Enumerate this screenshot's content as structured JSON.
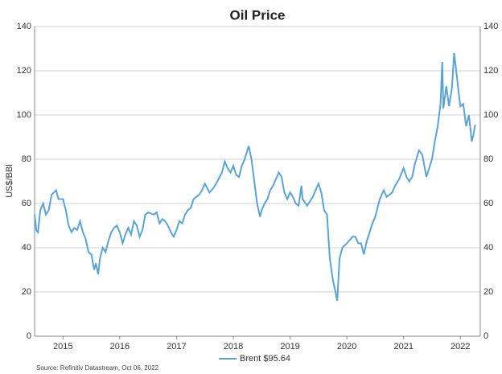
{
  "chart_data": {
    "type": "line",
    "title": "Oil Price",
    "y_label": "US$/BBl",
    "source": "Source: Refinitiv Datastream, Oct 06, 2022",
    "xlim": [
      2015,
      2022.85
    ],
    "xticks": [
      {
        "value": 2015.5,
        "label": "2015"
      },
      {
        "value": 2016.5,
        "label": "2016"
      },
      {
        "value": 2017.5,
        "label": "2017"
      },
      {
        "value": 2018.5,
        "label": "2018"
      },
      {
        "value": 2019.5,
        "label": "2019"
      },
      {
        "value": 2020.5,
        "label": "2020"
      },
      {
        "value": 2021.5,
        "label": "2021"
      },
      {
        "value": 2022.5,
        "label": "2022"
      }
    ],
    "ylim": [
      0,
      140
    ],
    "yticks": [
      0,
      20,
      40,
      60,
      80,
      100,
      120,
      140
    ],
    "y2lim": [
      0,
      140
    ],
    "y2ticks": [
      0,
      20,
      40,
      60,
      80,
      100,
      120,
      140
    ],
    "grid": true,
    "x": [
      2015.0,
      2015.03,
      2015.06,
      2015.1,
      2015.15,
      2015.2,
      2015.25,
      2015.3,
      2015.38,
      2015.42,
      2015.5,
      2015.55,
      2015.6,
      2015.65,
      2015.7,
      2015.75,
      2015.8,
      2015.85,
      2015.9,
      2015.95,
      2016.0,
      2016.05,
      2016.08,
      2016.12,
      2016.15,
      2016.2,
      2016.25,
      2016.3,
      2016.35,
      2016.4,
      2016.45,
      2016.5,
      2016.55,
      2016.6,
      2016.65,
      2016.7,
      2016.75,
      2016.8,
      2016.85,
      2016.9,
      2016.95,
      2017.0,
      2017.1,
      2017.15,
      2017.2,
      2017.25,
      2017.3,
      2017.35,
      2017.4,
      2017.45,
      2017.5,
      2017.55,
      2017.6,
      2017.65,
      2017.7,
      2017.75,
      2017.8,
      2017.85,
      2017.9,
      2017.95,
      2018.0,
      2018.08,
      2018.15,
      2018.22,
      2018.3,
      2018.35,
      2018.4,
      2018.45,
      2018.5,
      2018.55,
      2018.6,
      2018.65,
      2018.7,
      2018.77,
      2018.82,
      2018.87,
      2018.92,
      2018.97,
      2019.0,
      2019.05,
      2019.1,
      2019.15,
      2019.2,
      2019.25,
      2019.3,
      2019.35,
      2019.4,
      2019.45,
      2019.5,
      2019.55,
      2019.6,
      2019.65,
      2019.7,
      2019.72,
      2019.8,
      2019.85,
      2019.9,
      2019.95,
      2020.0,
      2020.05,
      2020.1,
      2020.15,
      2020.2,
      2020.25,
      2020.3,
      2020.33,
      2020.37,
      2020.42,
      2020.5,
      2020.6,
      2020.65,
      2020.7,
      2020.75,
      2020.8,
      2020.85,
      2020.9,
      2020.95,
      2021.0,
      2021.08,
      2021.15,
      2021.2,
      2021.3,
      2021.35,
      2021.42,
      2021.5,
      2021.55,
      2021.6,
      2021.65,
      2021.7,
      2021.77,
      2021.83,
      2021.9,
      2021.95,
      2022.0,
      2022.05,
      2022.1,
      2022.15,
      2022.18,
      2022.2,
      2022.25,
      2022.3,
      2022.35,
      2022.39,
      2022.43,
      2022.47,
      2022.5,
      2022.55,
      2022.6,
      2022.65,
      2022.7,
      2022.73,
      2022.76
    ],
    "series": [
      {
        "name": "Brent $95.64",
        "color": "#5ba3d6",
        "values": [
          55,
          48,
          47,
          57,
          60,
          55,
          57,
          64,
          66,
          62,
          62,
          57,
          50,
          47,
          49,
          48,
          52,
          47,
          44,
          38,
          37,
          30,
          33,
          28,
          35,
          40,
          38,
          43,
          47,
          49,
          50,
          47,
          42,
          46,
          49,
          46,
          52,
          50,
          45,
          48,
          55,
          56,
          55,
          56,
          51,
          53,
          52,
          50,
          47,
          45,
          48,
          52,
          51,
          55,
          57,
          58,
          62,
          63,
          64,
          66,
          69,
          65,
          67,
          70,
          74,
          79,
          76,
          74,
          77,
          73,
          72,
          77,
          80,
          86,
          80,
          70,
          60,
          54,
          57,
          60,
          62,
          66,
          68,
          71,
          74,
          72,
          65,
          62,
          65,
          63,
          60,
          59,
          68,
          62,
          59,
          61,
          63,
          66,
          69,
          65,
          57,
          55,
          35,
          26,
          20,
          16,
          35,
          40,
          42,
          45,
          45,
          42,
          42,
          37,
          43,
          47,
          51,
          54,
          62,
          66,
          63,
          65,
          68,
          71,
          76,
          72,
          70,
          72,
          78,
          84,
          82,
          72,
          76,
          80,
          88,
          95,
          105,
          124,
          103,
          113,
          104,
          112,
          128,
          119,
          110,
          104,
          105,
          95,
          100,
          88,
          91,
          95.64
        ]
      }
    ]
  }
}
